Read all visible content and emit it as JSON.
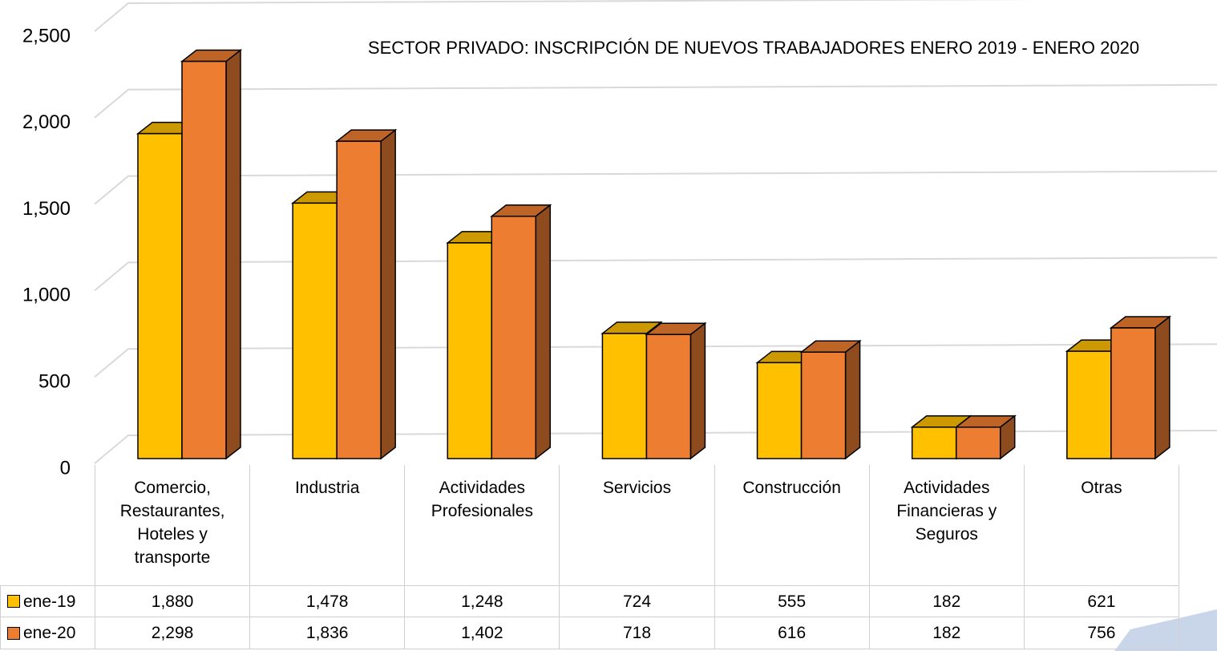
{
  "chart_data": {
    "type": "bar3d",
    "title": "SECTOR PRIVADO: INSCRIPCIÓN DE NUEVOS TRABAJADORES ENERO 2019 - ENERO 2020",
    "categories": [
      "Comercio, Restaurantes, Hoteles y transporte",
      "Industria",
      "Actividades Profesionales",
      "Servicios",
      "Construcción",
      "Actividades Financieras y Seguros",
      "Otras"
    ],
    "series": [
      {
        "name": "ene-19",
        "color": "#FFC000",
        "values": [
          1880,
          1478,
          1248,
          724,
          555,
          182,
          621
        ],
        "value_labels": [
          "1,880",
          "1,478",
          "1,248",
          "724",
          "555",
          "182",
          "621"
        ]
      },
      {
        "name": "ene-20",
        "color": "#ED7D31",
        "values": [
          2298,
          1836,
          1402,
          718,
          616,
          182,
          756
        ],
        "value_labels": [
          "2,298",
          "1,836",
          "1,402",
          "718",
          "616",
          "182",
          "756"
        ]
      }
    ],
    "ylim": [
      0,
      2500
    ],
    "yticks": [
      0,
      500,
      {
        "value": 1000,
        "label": "1,000"
      },
      {
        "value": 1500,
        "label": "1,500"
      },
      {
        "value": 2000,
        "label": "2,000"
      },
      {
        "value": 2500,
        "label": "2,500"
      }
    ],
    "grid": true
  }
}
